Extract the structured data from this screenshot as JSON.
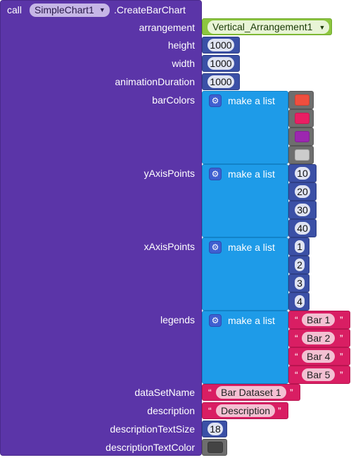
{
  "header": {
    "call": "call",
    "component": "SimpleChart1",
    "method": ".CreateBarChart"
  },
  "params": {
    "arrangement": "arrangement",
    "height": "height",
    "width": "width",
    "animationDuration": "animationDuration",
    "barColors": "barColors",
    "yAxisPoints": "yAxisPoints",
    "xAxisPoints": "xAxisPoints",
    "legends": "legends",
    "dataSetName": "dataSetName",
    "description": "description",
    "descriptionTextSize": "descriptionTextSize",
    "descriptionTextColor": "descriptionTextColor"
  },
  "values": {
    "arrangement": "Vertical_Arrangement1",
    "height": "1000",
    "width": "1000",
    "animationDuration": "1000",
    "make_a_list": "make a list",
    "barColors": [
      "#f04e3e",
      "#e91e63",
      "#9c27b0",
      "#cccccc"
    ],
    "yAxisPoints": [
      "10",
      "20",
      "30",
      "40"
    ],
    "xAxisPoints": [
      "1",
      "2",
      "3",
      "4"
    ],
    "legends": [
      "Bar 1",
      "Bar 2",
      "Bar 4",
      "Bar 5"
    ],
    "dataSetName": "Bar Dataset 1",
    "description": "Description",
    "descriptionTextSize": "18",
    "descriptionTextColor": "#444444"
  },
  "colors": {
    "component_block": "#5b35a8",
    "number_block": "#3b50a6",
    "list_block": "#1e9be8",
    "color_block": "#6e6e6e",
    "text_block": "#d91e63",
    "dropdown_block": "#8dc63f"
  },
  "icons": {
    "dropdown": "chevron-down-icon",
    "mutator": "gear-icon",
    "quote_open": "“",
    "quote_close": "”"
  }
}
